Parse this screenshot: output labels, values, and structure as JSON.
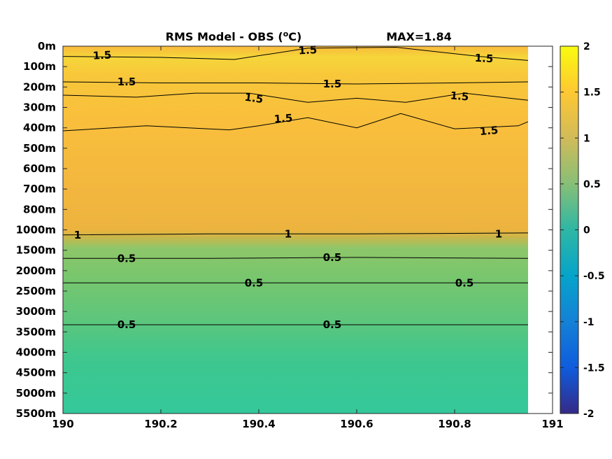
{
  "chart_data": {
    "type": "heatmap",
    "title": "RMS Model - OBS (",
    "title_sup": "o",
    "title_end": "C)",
    "max_label": "MAX=1.84",
    "xlabel": "",
    "ylabel": "",
    "xlim": [
      190,
      191
    ],
    "data_xlim": [
      190,
      190.95
    ],
    "x_ticks": [
      190,
      190.2,
      190.4,
      190.6,
      190.8,
      191
    ],
    "x_tick_labels": [
      "190",
      "190.2",
      "190.4",
      "190.6",
      "190.8",
      "191"
    ],
    "y_tick_labels": [
      "0m",
      "100m",
      "200m",
      "300m",
      "400m",
      "500m",
      "600m",
      "700m",
      "800m",
      "1000m",
      "1500m",
      "2000m",
      "2500m",
      "3000m",
      "3500m",
      "4000m",
      "4500m",
      "5000m",
      "5500m"
    ],
    "y_scale": "categorical-depth",
    "depth_profile": [
      1.6,
      1.75,
      1.62,
      1.55,
      1.52,
      1.46,
      1.42,
      1.38,
      1.35,
      1.2,
      0.62,
      0.58,
      0.56,
      0.54,
      0.5,
      0.44,
      0.38,
      0.36,
      0.35
    ],
    "colorbar": {
      "range": [
        -2,
        2
      ],
      "ticks": [
        -2,
        -1.5,
        -1,
        -0.5,
        0,
        0.5,
        1,
        1.5,
        2
      ],
      "tick_labels": [
        "-2",
        "-1.5",
        "-1",
        "-0.5",
        "0",
        "0.5",
        "1",
        "1.5",
        "2"
      ],
      "colormap": "parula"
    },
    "contours": [
      {
        "level": 1.5,
        "points": [
          [
            190,
            0.5
          ],
          [
            190.2,
            0.55
          ],
          [
            190.35,
            0.65
          ],
          [
            190.5,
            0.1
          ],
          [
            190.68,
            0.05
          ],
          [
            190.85,
            0.5
          ],
          [
            190.95,
            0.7
          ]
        ]
      },
      {
        "level": 1.5,
        "points": [
          [
            190,
            1.75
          ],
          [
            190.2,
            1.8
          ],
          [
            190.4,
            1.8
          ],
          [
            190.6,
            1.85
          ],
          [
            190.8,
            1.8
          ],
          [
            190.95,
            1.75
          ]
        ]
      },
      {
        "level": 1.5,
        "points": [
          [
            190,
            2.4
          ],
          [
            190.15,
            2.5
          ],
          [
            190.27,
            2.3
          ],
          [
            190.38,
            2.3
          ],
          [
            190.5,
            2.75
          ],
          [
            190.6,
            2.55
          ],
          [
            190.7,
            2.75
          ],
          [
            190.82,
            2.3
          ],
          [
            190.95,
            2.65
          ]
        ]
      },
      {
        "level": 1.5,
        "points": [
          [
            190,
            4.15
          ],
          [
            190.17,
            3.9
          ],
          [
            190.34,
            4.1
          ],
          [
            190.4,
            3.9
          ],
          [
            190.5,
            3.5
          ],
          [
            190.6,
            4.0
          ],
          [
            190.69,
            3.3
          ],
          [
            190.8,
            4.05
          ],
          [
            190.93,
            3.9
          ],
          [
            190.95,
            3.7
          ]
        ]
      },
      {
        "level": 1,
        "points": [
          [
            190,
            9.25
          ],
          [
            190.3,
            9.2
          ],
          [
            190.6,
            9.2
          ],
          [
            190.95,
            9.15
          ]
        ]
      },
      {
        "level": 0.5,
        "points": [
          [
            190,
            10.4
          ],
          [
            190.3,
            10.4
          ],
          [
            190.6,
            10.35
          ],
          [
            190.95,
            10.4
          ]
        ]
      },
      {
        "level": 0.5,
        "points": [
          [
            190,
            11.6
          ],
          [
            190.3,
            11.6
          ],
          [
            190.6,
            11.6
          ],
          [
            190.95,
            11.6
          ]
        ]
      },
      {
        "level": 0.5,
        "points": [
          [
            190,
            13.65
          ],
          [
            190.3,
            13.65
          ],
          [
            190.6,
            13.65
          ],
          [
            190.9,
            13.65
          ],
          [
            190.95,
            13.65
          ]
        ]
      }
    ],
    "contour_labels": [
      {
        "text": "1.5",
        "x": 190.08,
        "y": 0.45,
        "rot": -3
      },
      {
        "text": "1.5",
        "x": 190.5,
        "y": 0.2,
        "rot": -3
      },
      {
        "text": "1.5",
        "x": 190.86,
        "y": 0.6,
        "rot": 3
      },
      {
        "text": "1.5",
        "x": 190.13,
        "y": 1.75,
        "rot": 0
      },
      {
        "text": "1.5",
        "x": 190.55,
        "y": 1.85,
        "rot": 0
      },
      {
        "text": "1.5",
        "x": 190.39,
        "y": 2.55,
        "rot": 8
      },
      {
        "text": "1.5",
        "x": 190.81,
        "y": 2.45,
        "rot": 5
      },
      {
        "text": "1.5",
        "x": 190.45,
        "y": 3.55,
        "rot": -4
      },
      {
        "text": "1.5",
        "x": 190.87,
        "y": 4.15,
        "rot": -5
      },
      {
        "text": "1",
        "x": 190.03,
        "y": 9.25,
        "rot": 0
      },
      {
        "text": "1",
        "x": 190.46,
        "y": 9.2,
        "rot": 0
      },
      {
        "text": "1",
        "x": 190.89,
        "y": 9.2,
        "rot": 0
      },
      {
        "text": "0.5",
        "x": 190.13,
        "y": 10.4,
        "rot": 0
      },
      {
        "text": "0.5",
        "x": 190.55,
        "y": 10.35,
        "rot": 0
      },
      {
        "text": "0.5",
        "x": 190.39,
        "y": 11.6,
        "rot": 0
      },
      {
        "text": "0.5",
        "x": 190.82,
        "y": 11.6,
        "rot": 0
      },
      {
        "text": "0.5",
        "x": 190.13,
        "y": 13.65,
        "rot": 0
      },
      {
        "text": "0.5",
        "x": 190.55,
        "y": 13.65,
        "rot": 0
      }
    ]
  }
}
